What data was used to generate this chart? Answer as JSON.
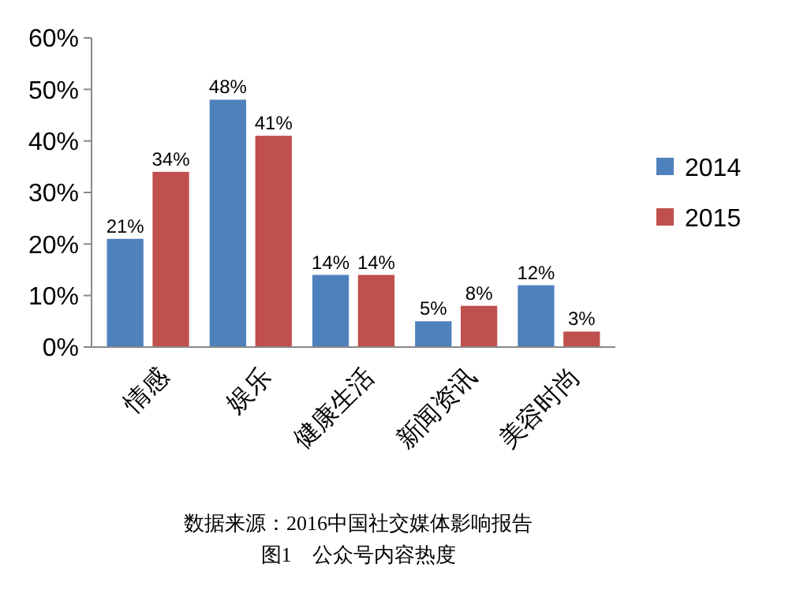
{
  "chart_data": {
    "type": "bar",
    "categories": [
      "情感",
      "娱乐",
      "健康生活",
      "新闻资讯",
      "美容时尚"
    ],
    "series": [
      {
        "name": "2014",
        "color": "#4f81bd",
        "values": [
          21,
          48,
          14,
          5,
          12
        ],
        "value_labels": [
          "21%",
          "48%",
          "14%",
          "5%",
          "12%"
        ]
      },
      {
        "name": "2015",
        "color": "#c0504d",
        "values": [
          34,
          41,
          14,
          8,
          3
        ],
        "value_labels": [
          "34%",
          "41%",
          "14%",
          "8%",
          "3%"
        ]
      }
    ],
    "ylim": [
      0,
      60
    ],
    "yticks": [
      {
        "value": 0,
        "label": "0%"
      },
      {
        "value": 10,
        "label": "10%"
      },
      {
        "value": 20,
        "label": "20%"
      },
      {
        "value": 30,
        "label": "30%"
      },
      {
        "value": 40,
        "label": "40%"
      },
      {
        "value": 50,
        "label": "50%"
      },
      {
        "value": 60,
        "label": "60%"
      }
    ],
    "grid": false,
    "legend": "right",
    "annotations": [
      "数据来源：2016中国社交媒体影响报告",
      "图1　公众号内容热度"
    ]
  }
}
